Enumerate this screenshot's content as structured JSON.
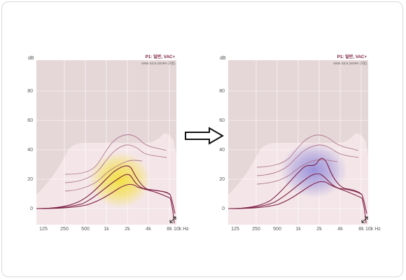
{
  "panels": [
    {
      "title": "P1: 일반, VAC+",
      "subtitle": "ANSI S3.5 (SORA 고정)",
      "unit_y": "dB",
      "y_ticks": [
        "0",
        "20",
        "40",
        "60",
        "80"
      ],
      "x_ticks": [
        "125",
        "250",
        "500",
        "1k",
        "2k",
        "4k",
        "8k",
        "10k Hz"
      ],
      "overlay": "yellow-glow",
      "overlay_color": "#f3e03c",
      "resize_icon": "resize-diagonal-icon"
    },
    {
      "title": "P1: 일반, VAC+",
      "subtitle": "ANSI S3.5 (SORA 고정)",
      "unit_y": "dB",
      "y_ticks": [
        "0",
        "20",
        "40",
        "60",
        "80"
      ],
      "x_ticks": [
        "125",
        "250",
        "500",
        "1k",
        "2k",
        "4k",
        "8k",
        "10k Hz"
      ],
      "overlay": "purple-glow",
      "overlay_color": "#8c84d8",
      "resize_icon": "resize-diagonal-icon"
    }
  ],
  "transition_icon": "right-arrow-icon",
  "colors": {
    "plot_bg": "#e5d6d8",
    "speech_banana": "#f4e6e8",
    "curve": "#7d1f45",
    "curve_light": "#b07890"
  }
}
